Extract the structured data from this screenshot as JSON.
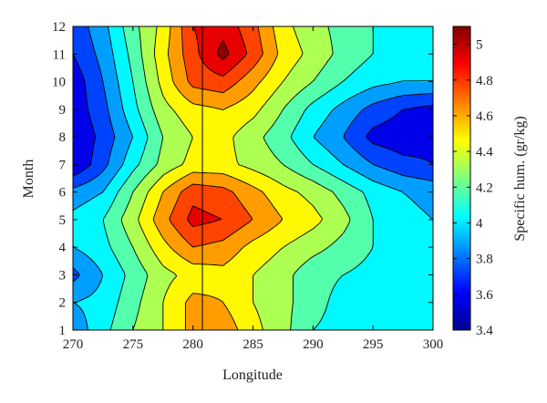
{
  "chart_data": {
    "type": "heatmap",
    "subtype": "filled-contour",
    "xlabel": "Longitude",
    "ylabel": "Month",
    "colorbar_label": "Specific hum. (gr/kg)",
    "xlim": [
      270,
      300
    ],
    "ylim": [
      1,
      12
    ],
    "x_ticks": [
      "270",
      "275",
      "280",
      "285",
      "290",
      "295",
      "300"
    ],
    "y_ticks": [
      "1",
      "2",
      "3",
      "4",
      "5",
      "6",
      "7",
      "8",
      "9",
      "10",
      "11",
      "12"
    ],
    "colorbar_range": [
      3.4,
      5.1
    ],
    "colorbar_ticks": [
      "3.4",
      "3.6",
      "3.8",
      "4",
      "4.2",
      "4.4",
      "4.6",
      "4.8",
      "5"
    ],
    "colormap": "jet",
    "contour_levels": [
      3.5,
      3.65,
      3.8,
      3.95,
      4.1,
      4.25,
      4.4,
      4.55,
      4.7,
      4.85,
      5.0
    ],
    "grid": false,
    "x": [
      270,
      272.5,
      275,
      277.5,
      280,
      282.5,
      285,
      287.5,
      290,
      292.5,
      295,
      297.5,
      300
    ],
    "y": [
      1,
      2,
      3,
      4,
      5,
      6,
      7,
      8,
      9,
      10,
      11,
      12
    ],
    "z": [
      [
        3.85,
        4.05,
        4.25,
        4.4,
        4.6,
        4.65,
        4.45,
        4.3,
        4.1,
        4.05,
        4.05,
        4.05,
        3.95
      ],
      [
        3.95,
        4.0,
        4.2,
        4.4,
        4.6,
        4.55,
        4.4,
        4.3,
        4.15,
        4.05,
        4.05,
        4.05,
        4.0
      ],
      [
        3.75,
        3.95,
        4.15,
        4.35,
        4.45,
        4.5,
        4.4,
        4.3,
        4.15,
        4.1,
        4.05,
        4.05,
        4.05
      ],
      [
        3.95,
        4.05,
        4.25,
        4.5,
        4.7,
        4.65,
        4.5,
        4.4,
        4.3,
        4.2,
        4.1,
        4.05,
        4.0
      ],
      [
        4.0,
        4.1,
        4.35,
        4.65,
        4.9,
        4.85,
        4.7,
        4.55,
        4.45,
        4.3,
        4.1,
        4.0,
        3.95
      ],
      [
        3.85,
        3.95,
        4.25,
        4.55,
        4.8,
        4.75,
        4.6,
        4.45,
        4.35,
        4.2,
        4.05,
        3.95,
        3.9
      ],
      [
        3.5,
        3.75,
        4.05,
        4.3,
        4.45,
        4.45,
        4.35,
        4.25,
        4.1,
        3.95,
        3.8,
        3.7,
        3.65
      ],
      [
        3.5,
        3.7,
        3.95,
        4.25,
        4.4,
        4.45,
        4.3,
        4.15,
        3.95,
        3.8,
        3.6,
        3.55,
        3.6
      ],
      [
        3.55,
        3.75,
        4.05,
        4.35,
        4.5,
        4.55,
        4.45,
        4.25,
        4.05,
        3.9,
        3.75,
        3.65,
        3.6
      ],
      [
        3.55,
        3.8,
        4.1,
        4.45,
        4.75,
        4.8,
        4.6,
        4.4,
        4.25,
        4.1,
        4.0,
        3.95,
        3.95
      ],
      [
        3.65,
        3.85,
        4.15,
        4.5,
        4.8,
        5.05,
        4.8,
        4.5,
        4.35,
        4.2,
        4.1,
        4.05,
        4.05
      ],
      [
        3.7,
        3.9,
        4.2,
        4.45,
        4.85,
        4.95,
        4.75,
        4.45,
        4.3,
        4.2,
        4.1,
        4.05,
        4.05
      ]
    ]
  }
}
